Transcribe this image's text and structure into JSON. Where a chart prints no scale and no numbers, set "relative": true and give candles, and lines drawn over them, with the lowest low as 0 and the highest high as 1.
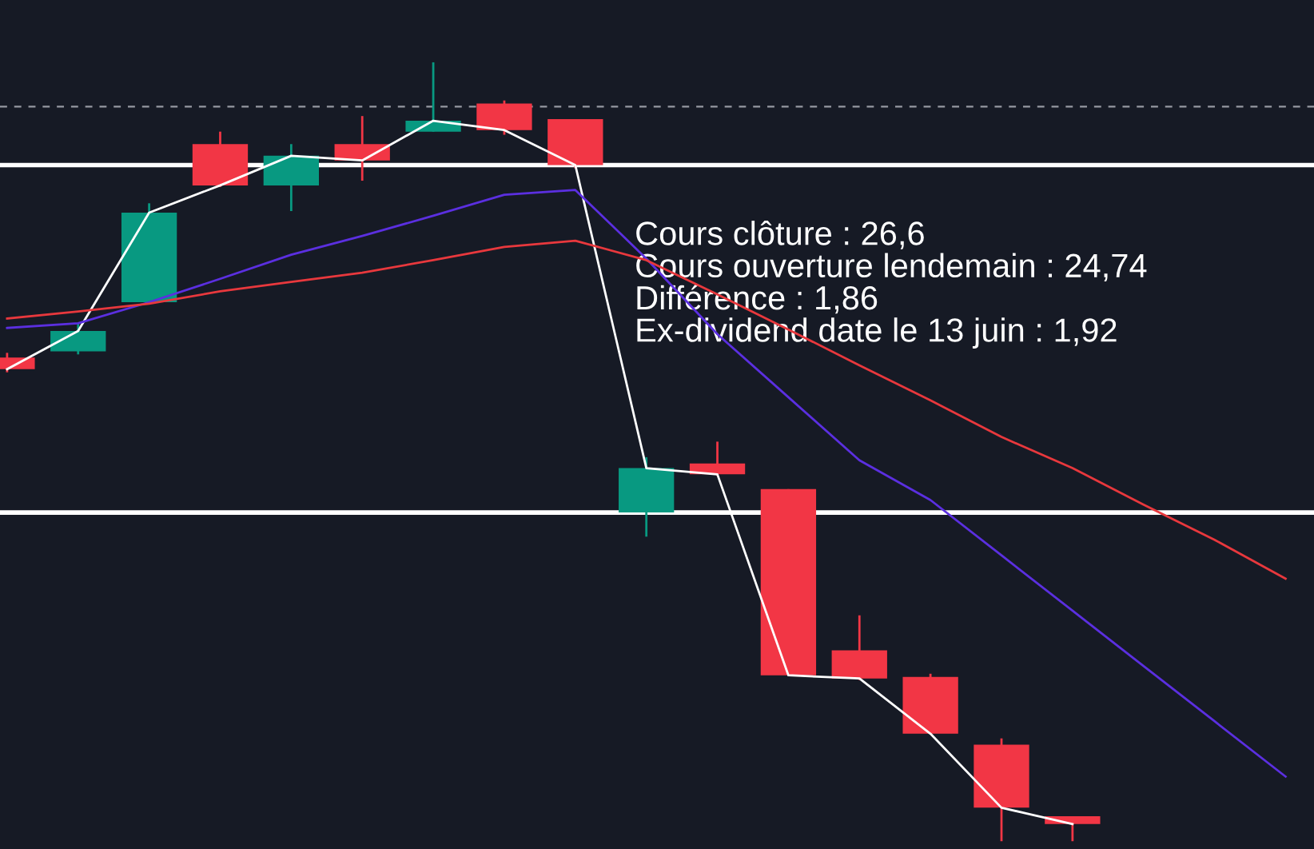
{
  "chart_data": {
    "type": "candlestick",
    "relative": true,
    "categories": [
      null,
      null,
      null,
      null,
      null,
      null,
      null,
      null,
      null,
      null,
      null,
      null,
      null,
      null,
      null,
      null,
      null,
      null,
      null
    ],
    "ohlc": [
      [
        0.621,
        0.627,
        0.602,
        0.606
      ],
      [
        0.629,
        0.665,
        0.625,
        0.655
      ],
      [
        0.692,
        0.819,
        0.692,
        0.807
      ],
      [
        0.895,
        0.911,
        0.84,
        0.842
      ],
      [
        0.842,
        0.895,
        0.809,
        0.88
      ],
      [
        0.895,
        0.931,
        0.848,
        0.874
      ],
      [
        0.911,
        1.0,
        0.911,
        0.925
      ],
      [
        0.947,
        0.951,
        0.907,
        0.913
      ],
      [
        0.927,
        0.927,
        0.864,
        0.868
      ],
      [
        0.422,
        0.493,
        0.391,
        0.479
      ],
      [
        0.485,
        0.513,
        0.469,
        0.471
      ],
      [
        0.452,
        0.452,
        0.213,
        0.213
      ],
      [
        0.245,
        0.29,
        0.207,
        0.209
      ],
      [
        0.211,
        0.215,
        0.138,
        0.138
      ],
      [
        0.124,
        0.132,
        0,
        0.043
      ],
      [
        0.032,
        0.032,
        0,
        0.022
      ],
      null,
      null,
      null
    ],
    "colors": [
      "#f23645",
      "#089981",
      "#089981",
      "#f23645",
      "#089981",
      "#f23645",
      "#089981",
      "#f23645",
      "#f23645",
      "#089981",
      "#f23645",
      "#f23645",
      "#f23645",
      "#f23645",
      "#f23645",
      "#f23645",
      null,
      null,
      null
    ],
    "series": [
      {
        "type": "line",
        "color": "#ffffff",
        "values": [
          0.606,
          0.655,
          0.807,
          0.842,
          0.88,
          0.874,
          0.925,
          0.913,
          0.868,
          0.479,
          0.471,
          0.213,
          0.209,
          0.138,
          0.043,
          0.022,
          null,
          null,
          null
        ]
      },
      {
        "type": "line",
        "color": "#5b2fe0",
        "values": [
          0.659,
          0.665,
          0.692,
          0.722,
          0.753,
          0.777,
          0.803,
          0.83,
          0.836,
          0.748,
          0.651,
          0.57,
          0.489,
          0.438,
          0.367,
          0.296,
          0.225,
          0.154,
          0.083
        ]
      },
      {
        "type": "line",
        "color": "#e8383d",
        "values": [
          0.671,
          0.68,
          0.69,
          0.706,
          0.718,
          0.73,
          0.746,
          0.763,
          0.771,
          0.746,
          0.702,
          0.657,
          0.611,
          0.566,
          0.519,
          0.479,
          0.432,
          0.387,
          0.337
        ]
      }
    ],
    "ref_lines": [
      {
        "axis": "y",
        "value": 0.868,
        "color": "#ffffff",
        "line_style": "solid"
      },
      {
        "axis": "y",
        "value": 0.422,
        "color": "#ffffff",
        "line_style": "solid"
      },
      {
        "axis": "y",
        "value": 0.943,
        "color": "#9598a1",
        "line_style": "dashed"
      }
    ],
    "annotations": [
      "Cours clôture : 26,6",
      "Cours ouverture lendemain : 24,74",
      "Différence : 1,86",
      "Ex-dividend date le 13 juin : 1,92"
    ],
    "legend": false
  }
}
